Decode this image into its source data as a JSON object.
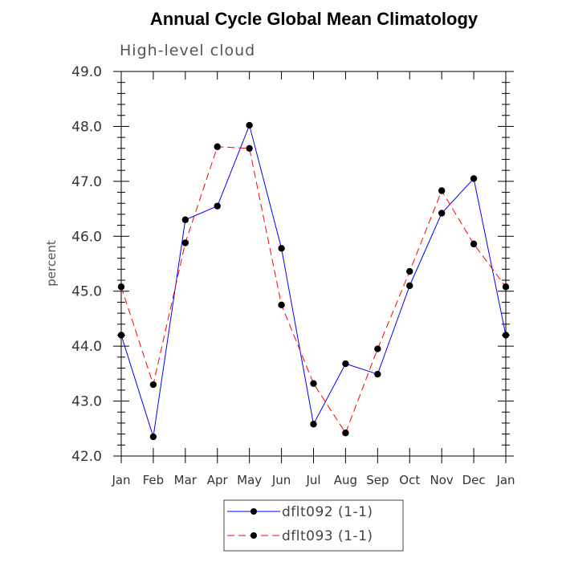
{
  "chart_data": {
    "type": "line",
    "title": "Annual Cycle Global Mean Climatology",
    "subtitle": "High-level cloud",
    "xlabel": "",
    "ylabel": "percent",
    "categories": [
      "Jan",
      "Feb",
      "Mar",
      "Apr",
      "May",
      "Jun",
      "Jul",
      "Aug",
      "Sep",
      "Oct",
      "Nov",
      "Dec",
      "Jan"
    ],
    "ylim": [
      42.0,
      49.0
    ],
    "yticks": [
      "42.0",
      "43.0",
      "44.0",
      "45.0",
      "46.0",
      "47.0",
      "48.0",
      "49.0"
    ],
    "series": [
      {
        "name": "dflt092 (1-1)",
        "color": "#0000ff",
        "dash": "solid",
        "values": [
          44.2,
          42.35,
          46.3,
          46.55,
          48.02,
          45.78,
          42.58,
          43.68,
          43.49,
          45.1,
          46.42,
          47.05,
          44.2
        ]
      },
      {
        "name": "dflt093 (1-1)",
        "color": "#ff0000",
        "dash": "dashed",
        "values": [
          45.08,
          43.3,
          45.88,
          47.63,
          47.6,
          44.75,
          43.32,
          42.42,
          43.95,
          45.36,
          46.83,
          45.86,
          45.08
        ]
      }
    ],
    "legend_position": "bottom-center",
    "grid": false
  }
}
